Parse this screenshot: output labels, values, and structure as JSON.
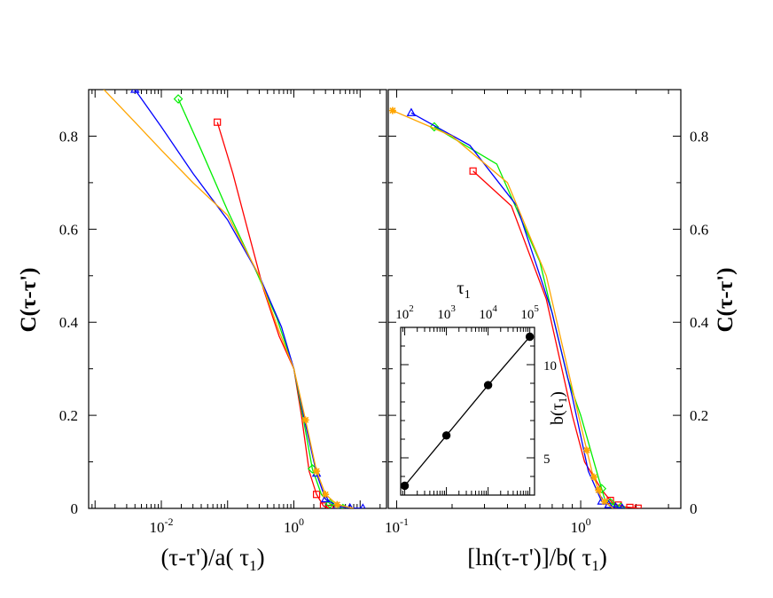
{
  "chart_data": [
    {
      "type": "line",
      "panel": "left",
      "xlabel": "(τ-τ')/a( τ₁)",
      "ylabel": "C(τ-τ')",
      "xscale": "log",
      "xlim": [
        0.0008,
        25
      ],
      "ylim": [
        0,
        0.9
      ],
      "xticks": [
        {
          "value": 0.01,
          "base": "10",
          "exp": "-2"
        },
        {
          "value": 1,
          "base": "10",
          "exp": "0"
        }
      ],
      "yticks": [
        0,
        0.2,
        0.4,
        0.6,
        0.8
      ],
      "ytick_labels": [
        "0",
        "0.2",
        "0.4",
        "0.6",
        "0.8"
      ],
      "series": [
        {
          "color": "#ff0000",
          "marker": "square",
          "x": [
            0.07,
            0.12,
            0.2,
            0.35,
            0.6,
            1.0,
            1.3,
            1.7,
            2.2,
            2.8,
            3.5
          ],
          "y": [
            0.83,
            0.72,
            0.6,
            0.47,
            0.37,
            0.3,
            0.2,
            0.08,
            0.03,
            0.005,
            0
          ],
          "marked_x": [
            0.07,
            2.2,
            2.8,
            3.5
          ]
        },
        {
          "color": "#00ee00",
          "marker": "diamond",
          "x": [
            0.018,
            0.04,
            0.1,
            0.25,
            0.55,
            1.0,
            1.4,
            1.9,
            2.6,
            3.5,
            5.5
          ],
          "y": [
            0.88,
            0.77,
            0.64,
            0.52,
            0.41,
            0.3,
            0.19,
            0.085,
            0.03,
            0.01,
            0
          ],
          "marked_x": [
            0.018,
            1.9,
            3.5,
            5.5
          ]
        },
        {
          "color": "#0000ff",
          "marker": "triangle",
          "x": [
            0.004,
            0.01,
            0.03,
            0.1,
            0.3,
            0.65,
            1.0,
            1.5,
            2.2,
            3.0,
            4.5,
            7,
            11
          ],
          "y": [
            0.9,
            0.82,
            0.72,
            0.62,
            0.5,
            0.39,
            0.3,
            0.18,
            0.075,
            0.02,
            0.005,
            0.001,
            0
          ],
          "marked_x": [
            0.004,
            2.2,
            3.0,
            4.5,
            7,
            11
          ]
        },
        {
          "color": "#ffa500",
          "marker": "star",
          "x": [
            0.001,
            0.004,
            0.01,
            0.03,
            0.1,
            0.3,
            0.6,
            1.0,
            1.5,
            2.2,
            3.0,
            4.5,
            8
          ],
          "y": [
            0.92,
            0.83,
            0.77,
            0.7,
            0.63,
            0.5,
            0.38,
            0.3,
            0.19,
            0.08,
            0.03,
            0.008,
            0
          ],
          "marked_x": [
            1.5,
            2.2,
            3.0,
            4.5
          ]
        }
      ]
    },
    {
      "type": "line",
      "panel": "right",
      "xlabel": "[ln(τ-τ')]/b( τ₁)",
      "ylabel": "C(τ-τ')",
      "xscale": "log",
      "xlim": [
        0.09,
        3.5
      ],
      "ylim": [
        0,
        0.9
      ],
      "xticks": [
        {
          "value": 0.1,
          "base": "10",
          "exp": "-1"
        },
        {
          "value": 1,
          "base": "10",
          "exp": "0"
        }
      ],
      "yticks": [
        0,
        0.2,
        0.4,
        0.6,
        0.8
      ],
      "ytick_labels": [
        "0",
        "0.2",
        "0.4",
        "0.6",
        "0.8"
      ],
      "series": [
        {
          "color": "#ff0000",
          "marker": "square",
          "x": [
            0.26,
            0.42,
            0.65,
            0.9,
            1.05,
            1.3,
            1.5,
            1.75,
            2.1
          ],
          "y": [
            0.725,
            0.65,
            0.45,
            0.2,
            0.1,
            0.04,
            0.01,
            0.003,
            0
          ],
          "marked_x": [
            0.26,
            1.45,
            1.6,
            1.85,
            2.05
          ]
        },
        {
          "color": "#00ee00",
          "marker": "diamond",
          "x": [
            0.16,
            0.35,
            0.6,
            0.85,
            1.0,
            1.2,
            1.35,
            1.55,
            1.75
          ],
          "y": [
            0.82,
            0.74,
            0.53,
            0.28,
            0.2,
            0.09,
            0.02,
            0.005,
            0
          ],
          "marked_x": [
            0.16,
            1.3,
            1.45,
            1.65
          ]
        },
        {
          "color": "#0000ff",
          "marker": "triangle",
          "x": [
            0.12,
            0.25,
            0.45,
            0.7,
            0.9,
            1.1,
            1.3,
            1.5,
            1.7
          ],
          "y": [
            0.85,
            0.78,
            0.65,
            0.42,
            0.24,
            0.08,
            0.015,
            0.003,
            0
          ],
          "marked_x": [
            0.12,
            1.3,
            1.42,
            1.55,
            1.68
          ]
        },
        {
          "color": "#ffa500",
          "marker": "star",
          "x": [
            0.095,
            0.2,
            0.4,
            0.65,
            0.85,
            1.0,
            1.15,
            1.3,
            1.5
          ],
          "y": [
            0.855,
            0.8,
            0.7,
            0.5,
            0.3,
            0.18,
            0.08,
            0.02,
            0
          ],
          "marked_x": [
            0.095,
            1.08,
            1.18,
            1.25,
            1.35
          ]
        }
      ]
    },
    {
      "type": "line",
      "panel": "inset",
      "xlabel": "τ₁",
      "ylabel": "b(τ₁)",
      "xscale": "log",
      "xlim": [
        80,
        130000
      ],
      "ylim": [
        3,
        12
      ],
      "xticks": [
        {
          "value": 100,
          "base": "10",
          "exp": "2"
        },
        {
          "value": 1000,
          "base": "10",
          "exp": "3"
        },
        {
          "value": 10000,
          "base": "10",
          "exp": "4"
        },
        {
          "value": 100000,
          "base": "10",
          "exp": "5"
        }
      ],
      "yticks": [
        5,
        10
      ],
      "ytick_labels": [
        "5",
        "10"
      ],
      "series": [
        {
          "color": "#000000",
          "marker": "circle",
          "x": [
            100,
            1000,
            10000,
            100000
          ],
          "y": [
            3.5,
            6.2,
            8.9,
            11.5
          ]
        }
      ]
    }
  ]
}
